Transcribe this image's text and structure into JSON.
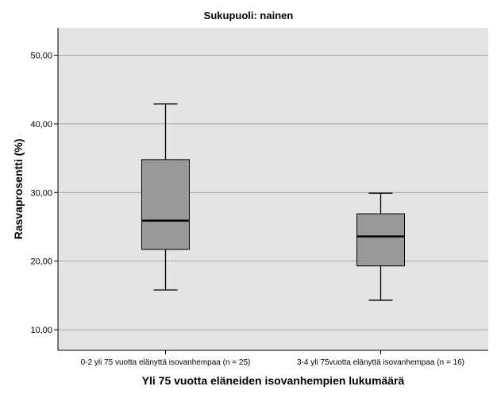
{
  "chart_data": {
    "type": "box",
    "title": "Sukupuoli: nainen",
    "xlabel": "Yli 75 vuotta eläneiden isovanhempien lukumäärä",
    "ylabel": "Rasvaprosentti (%)",
    "ylim": [
      7,
      54
    ],
    "yticks": [
      "10,00",
      "20,00",
      "30,00",
      "40,00",
      "50,00"
    ],
    "ytick_values": [
      10,
      20,
      30,
      40,
      50
    ],
    "grid": true,
    "categories": [
      "0-2 yli 75 vuotta elänyttä isovanhempaa (n = 25)",
      "3-4 yli 75vuotta elänyttä isovanhempaa (n = 16)"
    ],
    "boxes": [
      {
        "min": 15.8,
        "q1": 21.7,
        "median": 25.9,
        "q3": 34.8,
        "max": 42.9
      },
      {
        "min": 14.3,
        "q1": 19.3,
        "median": 23.6,
        "q3": 26.9,
        "max": 29.9
      }
    ],
    "colors": {
      "plot_bg": "#e4e4e4",
      "box_fill": "#999999",
      "grid": "#a6a6a6"
    }
  }
}
